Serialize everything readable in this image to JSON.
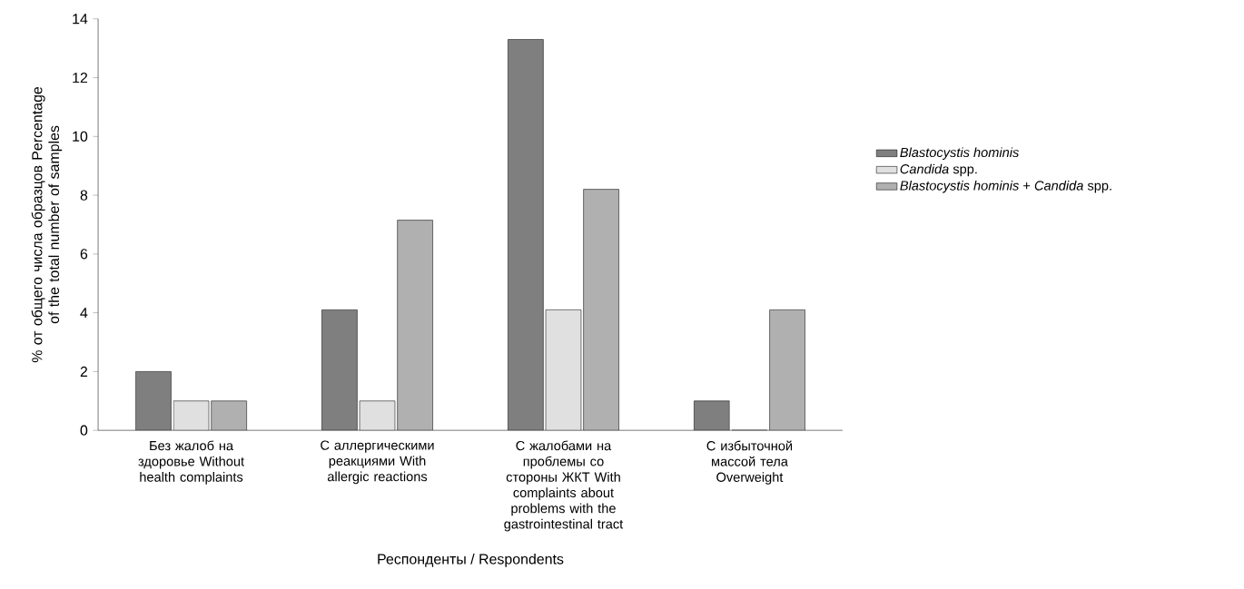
{
  "chart_data": {
    "type": "bar",
    "xlabel": "Респонденты / Respondents",
    "ylabel": "% от общего числа образцов Percentage of the total number of samples",
    "categories": [
      "Без жалоб на здоровье Without health complaints",
      "С аллергическими реакциями With allergic reactions",
      "С жалобами на проблемы со стороны ЖКТ With complaints about problems with the gastrointestinal tract",
      "С избыточной массой тела Overweight"
    ],
    "series": [
      {
        "name": "*Blastocystis hominis*",
        "color": "#7f7f7f",
        "values": [
          2.0,
          4.1,
          13.3,
          1.0
        ]
      },
      {
        "name": "*Candida* spp.",
        "color": "#e0e0e0",
        "values": [
          1.0,
          1.0,
          4.1,
          0
        ]
      },
      {
        "name": "*Blastocystis hominis* + *Candida* spp.",
        "color": "#b0b0b0",
        "values": [
          1.0,
          7.15,
          8.2,
          4.1
        ]
      }
    ],
    "ylim": [
      0,
      14
    ],
    "yticks": [
      0,
      2,
      4,
      6,
      8,
      10,
      12,
      14
    ],
    "grid": false,
    "legend": "right"
  }
}
